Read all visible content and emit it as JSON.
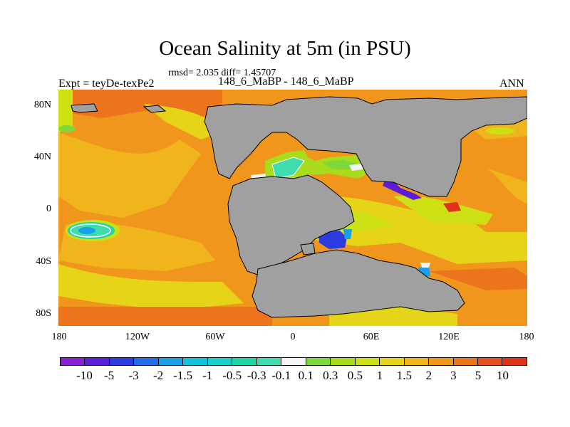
{
  "title": "Ocean Salinity at 5m (in PSU)",
  "stats": "rmsd= 2.035 diff= 1.45707",
  "subtitle": "148_6_MaBP - 148_6_MaBP",
  "left_label": "Expt = teyDe-texPe2",
  "right_label": "ANN",
  "lat_labels": [
    "80N",
    "40N",
    "0",
    "40S",
    "80S"
  ],
  "lon_labels": [
    "180",
    "120W",
    "60W",
    "0",
    "60E",
    "120E",
    "180"
  ],
  "colorbar": {
    "labels": [
      "-10",
      "-5",
      "-3",
      "-2",
      "-1.5",
      "-1",
      "-0.5",
      "-0.3",
      "-0.1",
      "0.1",
      "0.3",
      "0.5",
      "1",
      "1.5",
      "2",
      "3",
      "5",
      "10"
    ],
    "colors": [
      "#8a1fd6",
      "#5a1ed8",
      "#2b3be0",
      "#1f6ee8",
      "#1aa0e8",
      "#10c2dc",
      "#18d0c8",
      "#1cd6a8",
      "#40dcb0",
      "#f4f4f4",
      "#7ed83c",
      "#a8dc1c",
      "#cce014",
      "#e6d418",
      "#f0b41c",
      "#f0961c",
      "#ec741c",
      "#e6501c",
      "#e03218"
    ]
  },
  "colors": {
    "land": "#a0a0a0",
    "ocean_base": "#f0961c"
  }
}
